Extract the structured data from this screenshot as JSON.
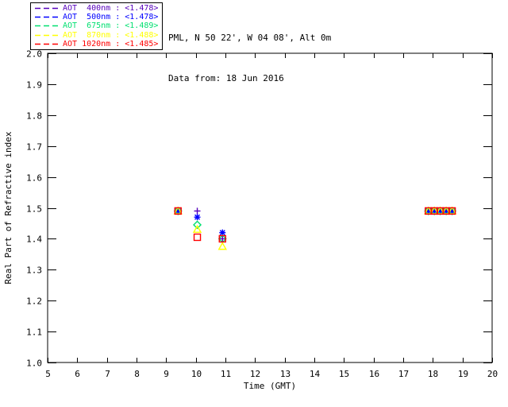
{
  "header": {
    "location_line": "PML, N 50 22', W 04 08', Alt 0m",
    "date_line": "Data from: 18 Jun 2016"
  },
  "legend": {
    "position": "top-left",
    "items": [
      {
        "label": "AOT  400nm : <1.478>",
        "color": "#5500BB",
        "marker": "plus"
      },
      {
        "label": "AOT  500nm : <1.478>",
        "color": "#0000FF",
        "marker": "asterisk"
      },
      {
        "label": "AOT  675nm : <1.489>",
        "color": "#00E070",
        "marker": "diamond"
      },
      {
        "label": "AOT  870nm : <1.488>",
        "color": "#FFFF00",
        "marker": "triangle"
      },
      {
        "label": "AOT 1020nm : <1.485>",
        "color": "#FF0000",
        "marker": "square"
      }
    ]
  },
  "chart_data": {
    "type": "scatter",
    "title": "",
    "xlabel": "Time (GMT)",
    "ylabel": "Real Part of Refractive index",
    "xlim": [
      5,
      20
    ],
    "ylim": [
      1.0,
      2.0
    ],
    "x_ticks": [
      "5",
      "6",
      "7",
      "8",
      "9",
      "10",
      "11",
      "12",
      "13",
      "14",
      "15",
      "16",
      "17",
      "18",
      "19",
      "20"
    ],
    "y_ticks": [
      "1.0",
      "1.1",
      "1.2",
      "1.3",
      "1.4",
      "1.5",
      "1.6",
      "1.7",
      "1.8",
      "1.9",
      "2.0"
    ],
    "grid": false,
    "legend_position": "top-left",
    "frame_color": "#000000",
    "series": [
      {
        "name": "AOT 400nm",
        "legend_value": "<1.478>",
        "color": "#5500BB",
        "marker": "plus",
        "points": [
          [
            9.4,
            1.49
          ],
          [
            10.05,
            1.49
          ],
          [
            10.9,
            1.4
          ],
          [
            17.85,
            1.49
          ],
          [
            18.05,
            1.49
          ],
          [
            18.25,
            1.49
          ],
          [
            18.45,
            1.49
          ],
          [
            18.65,
            1.49
          ]
        ]
      },
      {
        "name": "AOT 500nm",
        "legend_value": "<1.478>",
        "color": "#0000FF",
        "marker": "asterisk",
        "points": [
          [
            9.4,
            1.49
          ],
          [
            10.05,
            1.47
          ],
          [
            10.9,
            1.42
          ],
          [
            17.85,
            1.49
          ],
          [
            18.05,
            1.49
          ],
          [
            18.25,
            1.49
          ],
          [
            18.45,
            1.49
          ],
          [
            18.65,
            1.49
          ]
        ]
      },
      {
        "name": "AOT 675nm",
        "legend_value": "<1.489>",
        "color": "#00E070",
        "marker": "diamond",
        "points": [
          [
            9.4,
            1.49
          ],
          [
            10.05,
            1.445
          ],
          [
            10.9,
            1.4
          ],
          [
            17.85,
            1.49
          ],
          [
            18.05,
            1.49
          ],
          [
            18.25,
            1.49
          ],
          [
            18.45,
            1.49
          ],
          [
            18.65,
            1.49
          ]
        ]
      },
      {
        "name": "AOT 870nm",
        "legend_value": "<1.488>",
        "color": "#FFFF00",
        "marker": "triangle",
        "points": [
          [
            9.4,
            1.49
          ],
          [
            10.05,
            1.43
          ],
          [
            10.9,
            1.375
          ],
          [
            17.85,
            1.49
          ],
          [
            18.05,
            1.49
          ],
          [
            18.25,
            1.49
          ],
          [
            18.45,
            1.49
          ],
          [
            18.65,
            1.49
          ]
        ]
      },
      {
        "name": "AOT 1020nm",
        "legend_value": "<1.485>",
        "color": "#FF0000",
        "marker": "square",
        "points": [
          [
            9.4,
            1.49
          ],
          [
            10.05,
            1.405
          ],
          [
            10.9,
            1.4
          ],
          [
            17.85,
            1.49
          ],
          [
            18.05,
            1.49
          ],
          [
            18.25,
            1.49
          ],
          [
            18.45,
            1.49
          ],
          [
            18.65,
            1.49
          ]
        ]
      }
    ]
  }
}
